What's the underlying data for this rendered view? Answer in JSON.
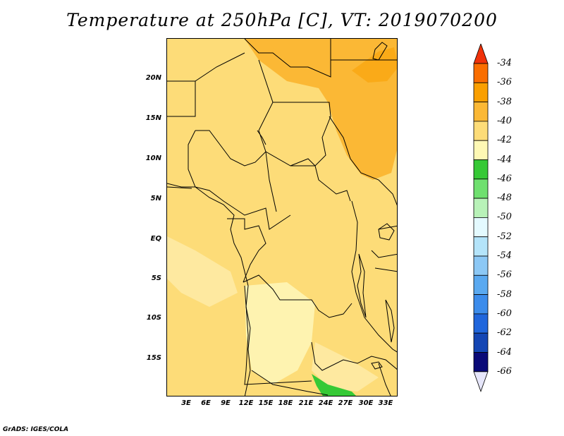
{
  "title": "Temperature at 250hPa [C], VT: 2019070200",
  "credit": "GrADS: IGES/COLA",
  "y_axis": [
    "20N",
    "15N",
    "10N",
    "5N",
    "EQ",
    "5S",
    "10S",
    "15S"
  ],
  "x_axis": [
    "3E",
    "6E",
    "9E",
    "12E",
    "15E",
    "18E",
    "21E",
    "24E",
    "27E",
    "30E",
    "33E"
  ],
  "colorbar": {
    "labels": [
      "-34",
      "-36",
      "-38",
      "-40",
      "-42",
      "-44",
      "-46",
      "-48",
      "-50",
      "-52",
      "-54",
      "-56",
      "-58",
      "-60",
      "-62",
      "-64",
      "-66"
    ],
    "colors": [
      "#f0320a",
      "#fa6e00",
      "#fa9f00",
      "#fbb835",
      "#fddc78",
      "#fef8b4",
      "#36c936",
      "#6fe06f",
      "#b8f2b8",
      "#e4faff",
      "#b4e4fa",
      "#8cc8f5",
      "#5aa9f0",
      "#3c8ceb",
      "#2066dc",
      "#1446b4",
      "#0a0a78",
      "#e6e6fa"
    ]
  }
}
